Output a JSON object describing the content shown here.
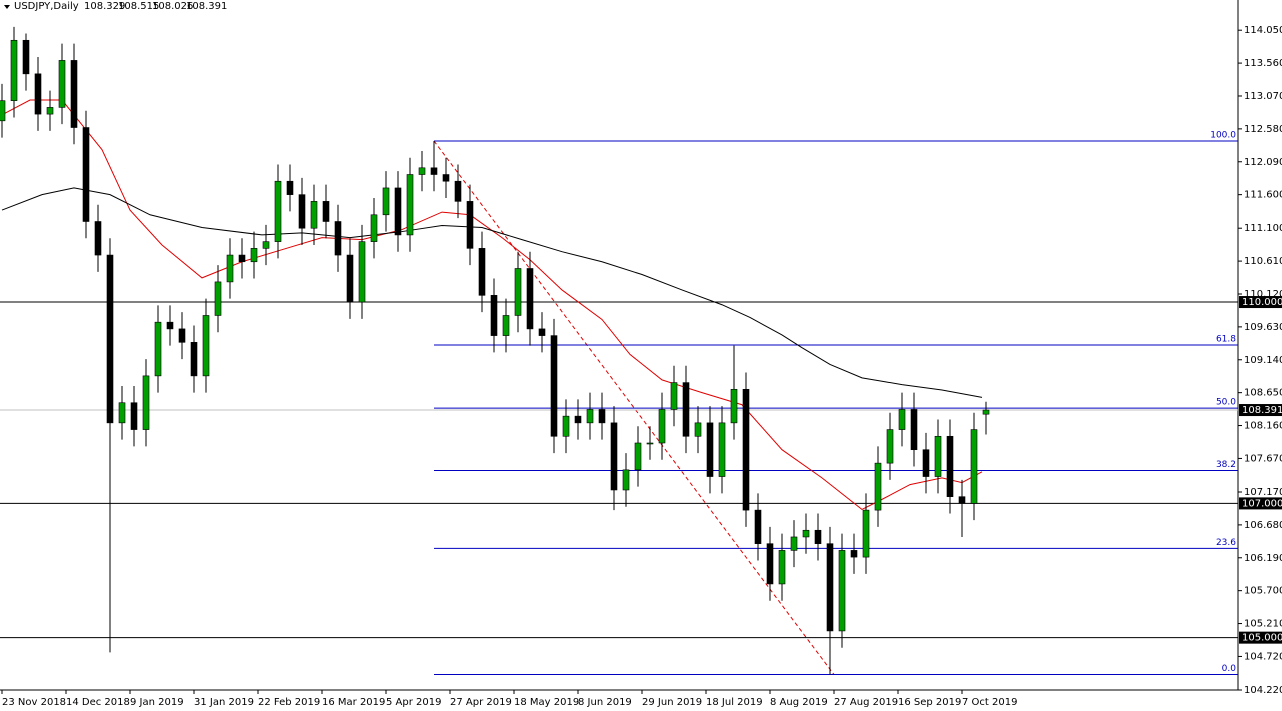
{
  "chart_data": {
    "type": "candlestick",
    "header": {
      "symbol": "USDJPY,Daily",
      "ohlc": [
        "108.329",
        "108.515",
        "108.026",
        "108.391"
      ]
    },
    "xlim": [
      0,
      309
    ],
    "xticks": [
      {
        "value": 0,
        "label": "23 Nov 2018"
      },
      {
        "value": 16,
        "label": "14 Dec 2018"
      },
      {
        "value": 32,
        "label": "9 Jan 2019"
      },
      {
        "value": 48,
        "label": "31 Jan 2019"
      },
      {
        "value": 64,
        "label": "22 Feb 2019"
      },
      {
        "value": 80,
        "label": "16 Mar 2019"
      },
      {
        "value": 96,
        "label": "5 Apr 2019"
      },
      {
        "value": 112,
        "label": "27 Apr 2019"
      },
      {
        "value": 128,
        "label": "18 May 2019"
      },
      {
        "value": 144,
        "label": "8 Jun 2019"
      },
      {
        "value": 160,
        "label": "29 Jun 2019"
      },
      {
        "value": 176,
        "label": "18 Jul 2019"
      },
      {
        "value": 192,
        "label": "8 Aug 2019"
      },
      {
        "value": 208,
        "label": "27 Aug 2019"
      },
      {
        "value": 224,
        "label": "16 Sep 2019"
      },
      {
        "value": 240,
        "label": "7 Oct 2019"
      }
    ],
    "ylim": [
      104.22,
      114.5
    ],
    "yticks": [
      {
        "value": 114.05,
        "label": "114.050"
      },
      {
        "value": 113.56,
        "label": "113.560"
      },
      {
        "value": 113.07,
        "label": "113.070"
      },
      {
        "value": 112.58,
        "label": "112.580"
      },
      {
        "value": 112.09,
        "label": "112.090"
      },
      {
        "value": 111.6,
        "label": "111.600"
      },
      {
        "value": 111.1,
        "label": "111.100"
      },
      {
        "value": 110.61,
        "label": "110.610"
      },
      {
        "value": 110.12,
        "label": "110.120"
      },
      {
        "value": 109.63,
        "label": "109.630"
      },
      {
        "value": 109.14,
        "label": "109.140"
      },
      {
        "value": 108.65,
        "label": "108.650"
      },
      {
        "value": 108.16,
        "label": "108.160"
      },
      {
        "value": 107.67,
        "label": "107.670"
      },
      {
        "value": 107.17,
        "label": "107.170"
      },
      {
        "value": 106.68,
        "label": "106.680"
      },
      {
        "value": 106.19,
        "label": "106.190"
      },
      {
        "value": 105.7,
        "label": "105.700"
      },
      {
        "value": 105.21,
        "label": "105.210"
      },
      {
        "value": 104.72,
        "label": "104.720"
      },
      {
        "value": 104.22,
        "label": "104.220"
      }
    ],
    "up_color": "#00a000",
    "down_color": "#000000",
    "x": [
      0,
      3,
      6,
      9,
      12,
      15,
      18,
      21,
      24,
      27,
      30,
      33,
      36,
      39,
      42,
      45,
      48,
      51,
      54,
      57,
      60,
      63,
      66,
      69,
      72,
      75,
      78,
      81,
      84,
      87,
      90,
      93,
      96,
      99,
      102,
      105,
      108,
      111,
      114,
      117,
      120,
      123,
      126,
      129,
      132,
      135,
      138,
      141,
      144,
      147,
      150,
      153,
      156,
      159,
      162,
      165,
      168,
      171,
      174,
      177,
      180,
      183,
      186,
      189,
      192,
      195,
      198,
      201,
      204,
      207,
      210,
      213,
      216,
      219,
      222,
      225,
      228,
      231,
      234,
      237,
      240,
      243,
      246
    ],
    "open": [
      112.7,
      113.0,
      113.9,
      113.4,
      112.8,
      112.9,
      113.6,
      112.6,
      111.2,
      110.7,
      108.2,
      108.5,
      108.1,
      108.9,
      109.7,
      109.6,
      109.4,
      108.9,
      109.8,
      110.3,
      110.7,
      110.6,
      110.8,
      110.9,
      111.8,
      111.6,
      111.1,
      111.5,
      111.2,
      110.7,
      110.0,
      110.9,
      111.3,
      111.7,
      111.0,
      111.9,
      112.0,
      111.9,
      111.8,
      111.5,
      110.8,
      110.1,
      109.5,
      109.8,
      110.5,
      109.6,
      109.5,
      108.0,
      108.3,
      108.2,
      108.4,
      108.2,
      107.2,
      107.5,
      107.9,
      107.9,
      108.4,
      108.8,
      108.0,
      108.2,
      107.4,
      108.2,
      108.7,
      106.9,
      106.4,
      105.8,
      106.3,
      106.5,
      106.6,
      106.4,
      105.1,
      106.3,
      106.2,
      106.9,
      107.6,
      108.1,
      108.4,
      107.8,
      107.4,
      108.0,
      107.1,
      107.0,
      108.329
    ],
    "high": [
      113.25,
      114.1,
      114.0,
      113.65,
      113.15,
      113.85,
      113.85,
      112.85,
      111.45,
      110.95,
      108.75,
      108.75,
      109.15,
      109.95,
      109.95,
      109.85,
      109.65,
      110.05,
      110.55,
      110.95,
      110.95,
      111.05,
      111.15,
      112.05,
      112.05,
      111.85,
      111.75,
      111.75,
      111.45,
      110.95,
      111.15,
      111.55,
      111.95,
      111.95,
      112.15,
      112.25,
      112.4,
      112.15,
      112.05,
      111.75,
      111.05,
      110.35,
      110.05,
      110.75,
      110.75,
      109.85,
      109.75,
      108.55,
      108.55,
      108.65,
      108.65,
      108.45,
      107.75,
      108.15,
      108.15,
      108.65,
      109.05,
      109.05,
      108.45,
      108.45,
      108.45,
      109.35,
      108.95,
      107.15,
      106.65,
      106.55,
      106.75,
      106.85,
      106.85,
      106.65,
      106.55,
      106.55,
      107.15,
      107.85,
      108.35,
      108.65,
      108.65,
      108.05,
      108.25,
      108.25,
      107.35,
      108.35,
      108.515
    ],
    "low": [
      112.45,
      112.75,
      113.15,
      112.55,
      112.55,
      112.65,
      112.35,
      110.95,
      110.45,
      104.78,
      107.95,
      107.85,
      107.85,
      108.65,
      109.35,
      109.15,
      108.65,
      108.65,
      109.55,
      110.05,
      110.35,
      110.35,
      110.55,
      110.65,
      111.35,
      110.85,
      110.85,
      110.95,
      110.45,
      109.75,
      109.75,
      110.65,
      111.05,
      110.75,
      110.75,
      111.65,
      111.65,
      111.55,
      111.25,
      110.55,
      109.85,
      109.25,
      109.25,
      109.55,
      109.35,
      109.25,
      107.75,
      107.75,
      107.95,
      107.95,
      107.95,
      106.9,
      106.95,
      107.25,
      107.65,
      107.65,
      108.15,
      107.75,
      107.75,
      107.15,
      107.15,
      107.95,
      106.65,
      106.15,
      105.55,
      105.55,
      106.05,
      106.25,
      106.15,
      104.45,
      104.85,
      105.95,
      105.95,
      106.65,
      107.35,
      107.85,
      107.55,
      107.15,
      107.15,
      106.85,
      106.5,
      106.75,
      108.026
    ],
    "close": [
      113.0,
      113.9,
      113.4,
      112.8,
      112.9,
      113.6,
      112.6,
      111.2,
      110.7,
      108.2,
      108.5,
      108.1,
      108.9,
      109.7,
      109.6,
      109.4,
      108.9,
      109.8,
      110.3,
      110.7,
      110.6,
      110.8,
      110.9,
      111.8,
      111.6,
      111.1,
      111.5,
      111.2,
      110.7,
      110.0,
      110.9,
      111.3,
      111.7,
      111.0,
      111.9,
      112.0,
      111.9,
      111.8,
      111.5,
      110.8,
      110.1,
      109.5,
      109.8,
      110.5,
      109.6,
      109.5,
      108.0,
      108.3,
      108.2,
      108.4,
      108.2,
      107.2,
      107.5,
      107.9,
      107.9,
      108.4,
      108.8,
      108.0,
      108.2,
      107.4,
      108.2,
      108.7,
      106.9,
      106.4,
      105.8,
      106.3,
      106.5,
      106.6,
      106.4,
      105.1,
      106.3,
      106.2,
      106.9,
      107.6,
      108.1,
      108.4,
      107.8,
      107.4,
      108.0,
      107.1,
      107.0,
      108.1,
      108.391
    ],
    "series": [
      {
        "color": "#e00000",
        "x": [
          0,
          7,
          15,
          20,
          25,
          32,
          40,
          50,
          60,
          70,
          80,
          90,
          100,
          110,
          117,
          125,
          132,
          140,
          150,
          157,
          165,
          175,
          185,
          195,
          205,
          215,
          220,
          227,
          235,
          240,
          245
        ],
        "values": [
          112.79,
          113.01,
          113.01,
          112.64,
          112.27,
          111.37,
          110.85,
          110.36,
          110.6,
          110.78,
          110.96,
          110.93,
          111.08,
          111.34,
          111.3,
          110.96,
          110.63,
          110.18,
          109.74,
          109.22,
          108.84,
          108.65,
          108.47,
          107.8,
          107.38,
          106.91,
          107.06,
          107.28,
          107.38,
          107.31,
          107.47
        ]
      },
      {
        "color": "#000000",
        "x": [
          0,
          10,
          18,
          27,
          37,
          50,
          65,
          75,
          87,
          100,
          110,
          120,
          130,
          140,
          150,
          160,
          170,
          180,
          187,
          195,
          200,
          207,
          215,
          225,
          235,
          245
        ],
        "values": [
          111.37,
          111.6,
          111.7,
          111.6,
          111.3,
          111.11,
          111.0,
          111.03,
          110.96,
          111.05,
          111.14,
          111.11,
          110.93,
          110.75,
          110.6,
          110.41,
          110.18,
          109.96,
          109.77,
          109.51,
          109.32,
          109.07,
          108.87,
          108.77,
          108.69,
          108.58
        ]
      }
    ],
    "levels": [
      {
        "value": 110.0,
        "label": "110.000"
      },
      {
        "value": 107.0,
        "label": "107.000"
      },
      {
        "value": 105.0,
        "label": "105.000"
      }
    ],
    "current_price": {
      "value": 108.391,
      "label": "108.391"
    },
    "fibonacci": {
      "start_x": 108,
      "end_x": 208,
      "high": 112.4,
      "low": 104.45,
      "color": "#0000c0",
      "lines": [
        {
          "value": 112.4,
          "label": "100.0"
        },
        {
          "value": 109.36,
          "label": "61.8"
        },
        {
          "value": 108.42,
          "label": "50.0"
        },
        {
          "value": 107.49,
          "label": "38.2"
        },
        {
          "value": 106.33,
          "label": "23.6"
        },
        {
          "value": 104.45,
          "label": "0.0"
        }
      ]
    }
  }
}
